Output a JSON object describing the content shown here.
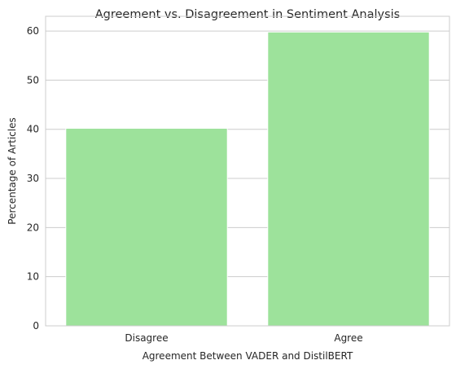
{
  "chart_data": {
    "type": "bar",
    "title": "Agreement vs. Disagreement in Sentiment Analysis",
    "xlabel": "Agreement Between VADER and DistilBERT",
    "ylabel": "Percentage of Articles",
    "categories": [
      "Disagree",
      "Agree"
    ],
    "values": [
      40.2,
      59.8
    ],
    "ylim": [
      0,
      63
    ],
    "yticks": [
      0,
      10,
      20,
      30,
      40,
      50,
      60
    ],
    "grid": "horizontal",
    "bar_color": "#9de29b"
  }
}
